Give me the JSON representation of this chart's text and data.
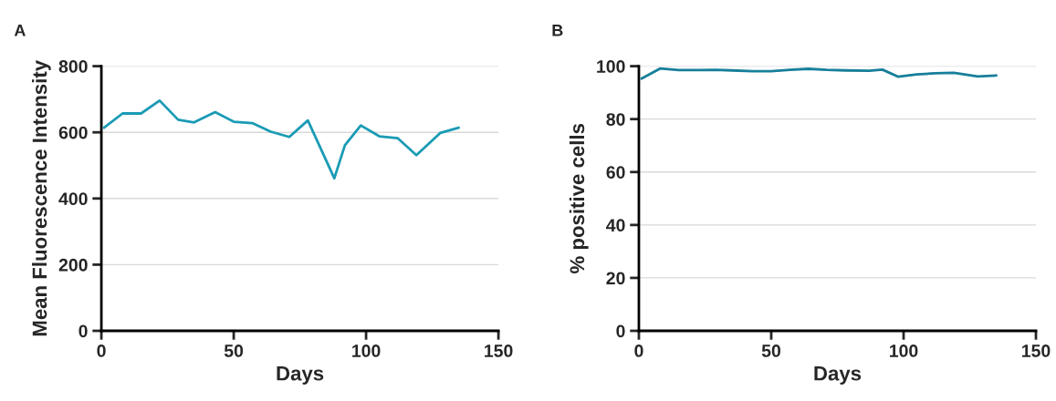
{
  "chart_data": [
    {
      "type": "line",
      "annotations": [
        "A"
      ],
      "xlabel": "Days",
      "ylabel": "Mean Fluorescence Intensity",
      "x": [
        1,
        8,
        15,
        22,
        29,
        35,
        43,
        50,
        57,
        64,
        71,
        78,
        88,
        92,
        98,
        105,
        112,
        119,
        128,
        135
      ],
      "series": [
        {
          "color": "#1a9bb5",
          "values": [
            614,
            657,
            657,
            696,
            638,
            630,
            661,
            632,
            628,
            602,
            586,
            636,
            461,
            561,
            621,
            588,
            582,
            531,
            598,
            614
          ]
        }
      ],
      "xlim": [
        0,
        150
      ],
      "xticks": [
        0,
        50,
        100,
        150
      ],
      "ylim": [
        0,
        800
      ],
      "yticks": [
        0,
        200,
        400,
        600,
        800
      ],
      "grid": "y",
      "legend": false
    },
    {
      "type": "line",
      "annotations": [
        "B"
      ],
      "xlabel": "Days",
      "ylabel": "% positive cells",
      "x": [
        1,
        8,
        15,
        22,
        29,
        35,
        43,
        50,
        57,
        64,
        71,
        78,
        87,
        92,
        98,
        105,
        112,
        119,
        128,
        135
      ],
      "series": [
        {
          "color": "#177f9a",
          "values": [
            95.3,
            99.1,
            98.5,
            98.5,
            98.6,
            98.4,
            98.1,
            98.1,
            98.6,
            99.0,
            98.6,
            98.4,
            98.3,
            98.7,
            96.0,
            96.9,
            97.3,
            97.5,
            96.1,
            96.5
          ]
        }
      ],
      "xlim": [
        0,
        150
      ],
      "xticks": [
        0,
        50,
        100,
        150
      ],
      "ylim": [
        0,
        100
      ],
      "yticks": [
        0,
        20,
        40,
        60,
        80,
        100
      ],
      "grid": "y",
      "legend": false
    }
  ]
}
